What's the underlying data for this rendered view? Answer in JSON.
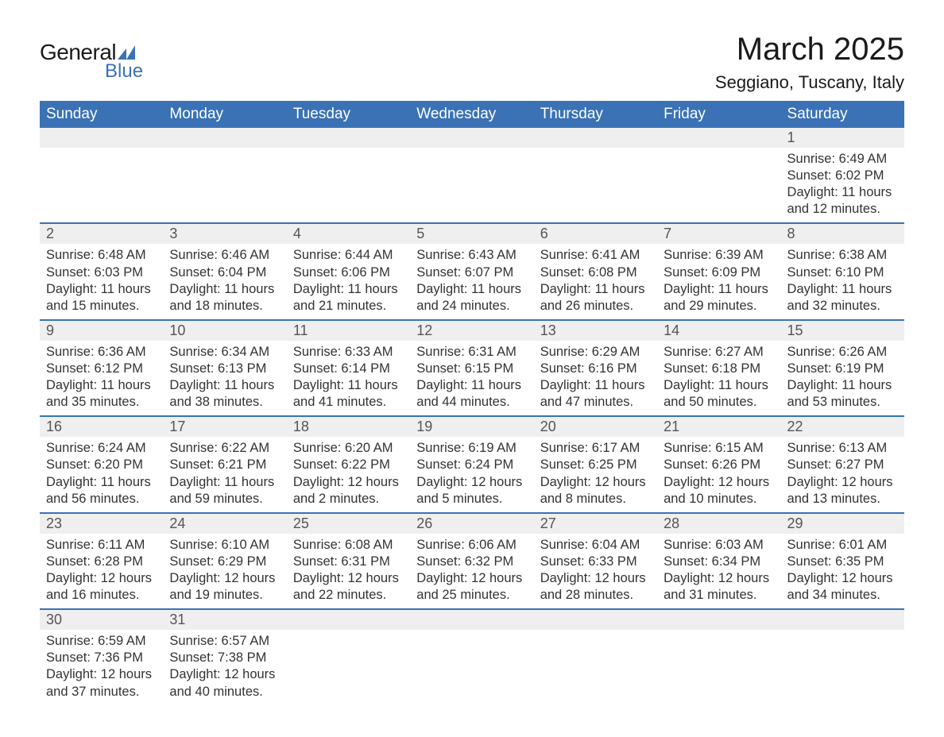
{
  "brand": {
    "name1": "General",
    "name2": "Blue",
    "accent": "#3a72b5"
  },
  "title": "March 2025",
  "location": "Seggiano, Tuscany, Italy",
  "dow": [
    "Sunday",
    "Monday",
    "Tuesday",
    "Wednesday",
    "Thursday",
    "Friday",
    "Saturday"
  ],
  "colors": {
    "header_bg": "#3a72b5",
    "header_text": "#ffffff",
    "daynum_bg": "#efefef",
    "week_border": "#3a72b5",
    "text": "#333333"
  },
  "weeks": [
    [
      null,
      null,
      null,
      null,
      null,
      null,
      {
        "n": "1",
        "sunrise": "6:49 AM",
        "sunset": "6:02 PM",
        "dl": "11 hours and 12 minutes."
      }
    ],
    [
      {
        "n": "2",
        "sunrise": "6:48 AM",
        "sunset": "6:03 PM",
        "dl": "11 hours and 15 minutes."
      },
      {
        "n": "3",
        "sunrise": "6:46 AM",
        "sunset": "6:04 PM",
        "dl": "11 hours and 18 minutes."
      },
      {
        "n": "4",
        "sunrise": "6:44 AM",
        "sunset": "6:06 PM",
        "dl": "11 hours and 21 minutes."
      },
      {
        "n": "5",
        "sunrise": "6:43 AM",
        "sunset": "6:07 PM",
        "dl": "11 hours and 24 minutes."
      },
      {
        "n": "6",
        "sunrise": "6:41 AM",
        "sunset": "6:08 PM",
        "dl": "11 hours and 26 minutes."
      },
      {
        "n": "7",
        "sunrise": "6:39 AM",
        "sunset": "6:09 PM",
        "dl": "11 hours and 29 minutes."
      },
      {
        "n": "8",
        "sunrise": "6:38 AM",
        "sunset": "6:10 PM",
        "dl": "11 hours and 32 minutes."
      }
    ],
    [
      {
        "n": "9",
        "sunrise": "6:36 AM",
        "sunset": "6:12 PM",
        "dl": "11 hours and 35 minutes."
      },
      {
        "n": "10",
        "sunrise": "6:34 AM",
        "sunset": "6:13 PM",
        "dl": "11 hours and 38 minutes."
      },
      {
        "n": "11",
        "sunrise": "6:33 AM",
        "sunset": "6:14 PM",
        "dl": "11 hours and 41 minutes."
      },
      {
        "n": "12",
        "sunrise": "6:31 AM",
        "sunset": "6:15 PM",
        "dl": "11 hours and 44 minutes."
      },
      {
        "n": "13",
        "sunrise": "6:29 AM",
        "sunset": "6:16 PM",
        "dl": "11 hours and 47 minutes."
      },
      {
        "n": "14",
        "sunrise": "6:27 AM",
        "sunset": "6:18 PM",
        "dl": "11 hours and 50 minutes."
      },
      {
        "n": "15",
        "sunrise": "6:26 AM",
        "sunset": "6:19 PM",
        "dl": "11 hours and 53 minutes."
      }
    ],
    [
      {
        "n": "16",
        "sunrise": "6:24 AM",
        "sunset": "6:20 PM",
        "dl": "11 hours and 56 minutes."
      },
      {
        "n": "17",
        "sunrise": "6:22 AM",
        "sunset": "6:21 PM",
        "dl": "11 hours and 59 minutes."
      },
      {
        "n": "18",
        "sunrise": "6:20 AM",
        "sunset": "6:22 PM",
        "dl": "12 hours and 2 minutes."
      },
      {
        "n": "19",
        "sunrise": "6:19 AM",
        "sunset": "6:24 PM",
        "dl": "12 hours and 5 minutes."
      },
      {
        "n": "20",
        "sunrise": "6:17 AM",
        "sunset": "6:25 PM",
        "dl": "12 hours and 8 minutes."
      },
      {
        "n": "21",
        "sunrise": "6:15 AM",
        "sunset": "6:26 PM",
        "dl": "12 hours and 10 minutes."
      },
      {
        "n": "22",
        "sunrise": "6:13 AM",
        "sunset": "6:27 PM",
        "dl": "12 hours and 13 minutes."
      }
    ],
    [
      {
        "n": "23",
        "sunrise": "6:11 AM",
        "sunset": "6:28 PM",
        "dl": "12 hours and 16 minutes."
      },
      {
        "n": "24",
        "sunrise": "6:10 AM",
        "sunset": "6:29 PM",
        "dl": "12 hours and 19 minutes."
      },
      {
        "n": "25",
        "sunrise": "6:08 AM",
        "sunset": "6:31 PM",
        "dl": "12 hours and 22 minutes."
      },
      {
        "n": "26",
        "sunrise": "6:06 AM",
        "sunset": "6:32 PM",
        "dl": "12 hours and 25 minutes."
      },
      {
        "n": "27",
        "sunrise": "6:04 AM",
        "sunset": "6:33 PM",
        "dl": "12 hours and 28 minutes."
      },
      {
        "n": "28",
        "sunrise": "6:03 AM",
        "sunset": "6:34 PM",
        "dl": "12 hours and 31 minutes."
      },
      {
        "n": "29",
        "sunrise": "6:01 AM",
        "sunset": "6:35 PM",
        "dl": "12 hours and 34 minutes."
      }
    ],
    [
      {
        "n": "30",
        "sunrise": "6:59 AM",
        "sunset": "7:36 PM",
        "dl": "12 hours and 37 minutes."
      },
      {
        "n": "31",
        "sunrise": "6:57 AM",
        "sunset": "7:38 PM",
        "dl": "12 hours and 40 minutes."
      },
      null,
      null,
      null,
      null,
      null
    ]
  ],
  "labels": {
    "sunrise_prefix": "Sunrise: ",
    "sunset_prefix": "Sunset: ",
    "daylight_prefix": "Daylight: "
  }
}
